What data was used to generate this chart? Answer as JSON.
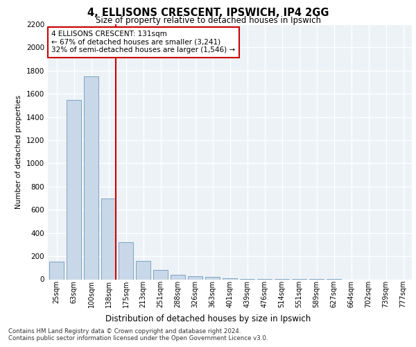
{
  "title_line1": "4, ELLISONS CRESCENT, IPSWICH, IP4 2GG",
  "title_line2": "Size of property relative to detached houses in Ipswich",
  "xlabel": "Distribution of detached houses by size in Ipswich",
  "ylabel": "Number of detached properties",
  "categories": [
    "25sqm",
    "63sqm",
    "100sqm",
    "138sqm",
    "175sqm",
    "213sqm",
    "251sqm",
    "288sqm",
    "326sqm",
    "363sqm",
    "401sqm",
    "439sqm",
    "476sqm",
    "514sqm",
    "551sqm",
    "589sqm",
    "627sqm",
    "664sqm",
    "702sqm",
    "739sqm",
    "777sqm"
  ],
  "values": [
    150,
    1550,
    1750,
    700,
    320,
    160,
    80,
    40,
    25,
    20,
    10,
    5,
    3,
    2,
    1,
    1,
    1,
    0,
    0,
    0,
    0
  ],
  "bar_color": "#c8d8e8",
  "bar_edge_color": "#7098b8",
  "vline_index": 3,
  "vline_color": "#cc0000",
  "annotation_text": "4 ELLISONS CRESCENT: 131sqm\n← 67% of detached houses are smaller (3,241)\n32% of semi-detached houses are larger (1,546) →",
  "annotation_box_color": "#ffffff",
  "annotation_box_edge": "#cc0000",
  "ylim": [
    0,
    2200
  ],
  "yticks": [
    0,
    200,
    400,
    600,
    800,
    1000,
    1200,
    1400,
    1600,
    1800,
    2000,
    2200
  ],
  "background_color": "#edf2f7",
  "grid_color": "#ffffff",
  "footer_line1": "Contains HM Land Registry data © Crown copyright and database right 2024.",
  "footer_line2": "Contains public sector information licensed under the Open Government Licence v3.0."
}
